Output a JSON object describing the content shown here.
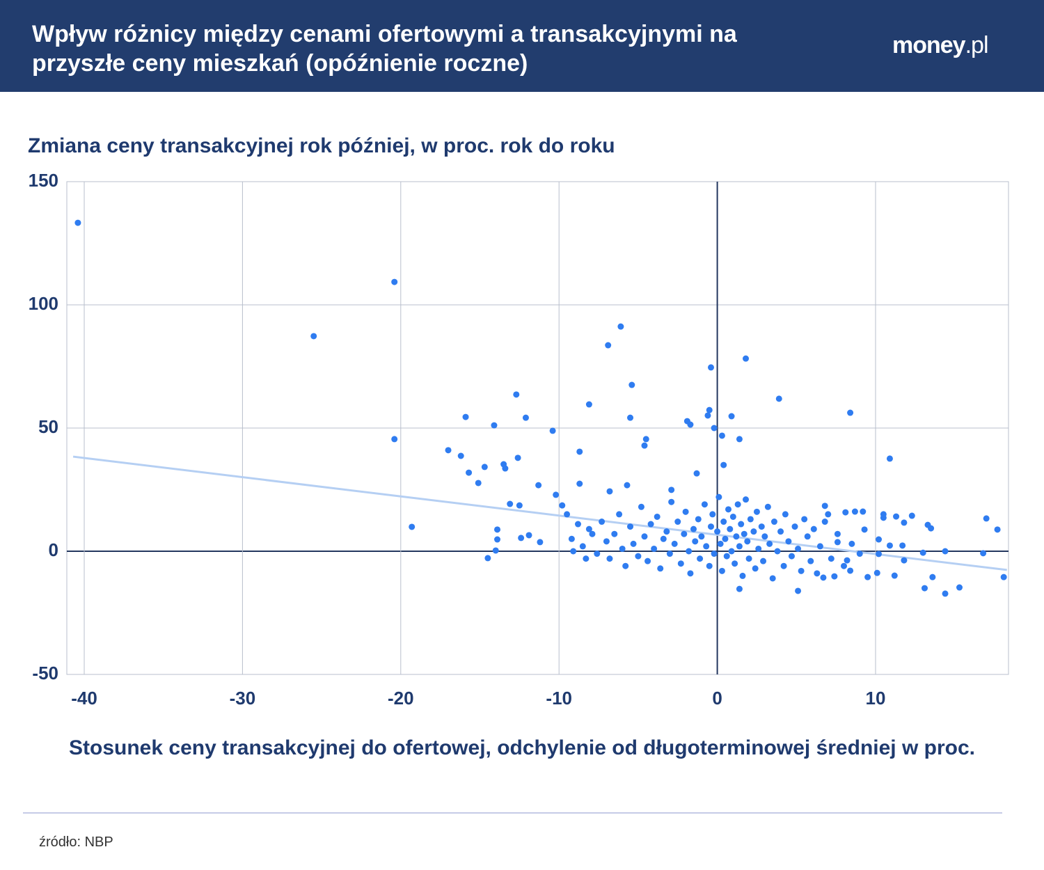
{
  "chart_data": {
    "type": "scatter",
    "title": "Wpływ różnicy między cenami ofertowymi a transakcyjnymi na przyszłe ceny mieszkań (opóźnienie roczne)",
    "logo_main": "money",
    "logo_suffix": ".pl",
    "y_label": "Zmiana ceny transakcyjnej rok później, w proc. rok do roku",
    "x_label": "Stosunek ceny transakcyjnej do ofertowej, odchylenie od długoterminowej średniej w proc.",
    "source": "źródło: NBP",
    "color": "#2f7cf0",
    "grid": true,
    "xlim": [
      -41.1,
      18.4
    ],
    "ylim": [
      -50,
      150
    ],
    "xticks": [
      -40,
      -30,
      -20,
      -10,
      0,
      10
    ],
    "yticks": [
      -50,
      0,
      50,
      100,
      150
    ],
    "trend": {
      "color": "#b5cff3",
      "x": [
        -40.7,
        18.3
      ],
      "y": [
        38.4,
        -7.6
      ]
    },
    "x": [
      -40.4,
      -20.4,
      -25.5,
      -20.4,
      -19.3,
      -6.1,
      -6.9,
      -5.4,
      -5.5,
      -8.1,
      -12.7,
      -12.1,
      -15.9,
      -14.1,
      -10.4,
      -17.0,
      -16.2,
      -8.7,
      -12.6,
      -13.5,
      -13.4,
      -14.7,
      -15.7,
      -15.1,
      -11.3,
      -8.7,
      -10.2,
      -9.8,
      -13.1,
      -12.5,
      -13.9,
      -13.9,
      -12.4,
      -11.9,
      -11.2,
      -14.0,
      -14.5,
      -0.4,
      1.8,
      3.9,
      -0.5,
      -0.6,
      0.9,
      -1.9,
      -1.7,
      -0.2,
      0.3,
      1.4,
      -4.5,
      -4.6,
      8.4,
      10.9,
      -1.3,
      0.4,
      -5.7,
      -6.8,
      -2.9,
      17,
      17.7,
      16.8,
      18.1,
      14.4,
      15.3,
      14.4,
      13.1,
      13.6,
      13,
      13.3,
      13.5,
      11.8,
      11.3,
      11.7,
      11.2,
      10.1,
      10.2,
      10.5,
      10.2,
      10.5,
      12.3,
      11.8,
      10.9,
      9.5,
      9.3,
      9.2,
      8.7,
      8.1,
      8.2,
      8.4,
      7.4,
      6.7,
      7.6,
      7,
      6.8,
      5.1,
      1.4,
      -9.5,
      -8.8,
      -8.3,
      -7.9,
      -9.1,
      -9.2,
      -8.5,
      -8.1,
      -7.6,
      -7.3,
      -7,
      -6.8,
      -6.5,
      -6.2,
      -6,
      -5.8,
      -5.5,
      -5.3,
      -5,
      -4.8,
      -4.6,
      -4.4,
      -4.2,
      -4,
      -3.8,
      -3.6,
      -3.4,
      -3.2,
      -3,
      -2.9,
      -2.7,
      -2.5,
      -2.3,
      -2.1,
      -2,
      -1.8,
      -1.7,
      -1.5,
      -1.4,
      -1.2,
      -1.1,
      -1,
      -0.8,
      -0.7,
      -0.5,
      -0.4,
      -0.3,
      -0.2,
      0,
      0.1,
      0.2,
      0.3,
      0.4,
      0.5,
      0.6,
      0.7,
      0.8,
      0.9,
      1,
      1.1,
      1.2,
      1.3,
      1.4,
      1.5,
      1.6,
      1.7,
      1.8,
      1.9,
      2,
      2.1,
      2.3,
      2.4,
      2.5,
      2.6,
      2.8,
      2.9,
      3,
      3.2,
      3.3,
      3.5,
      3.6,
      3.8,
      4,
      4.2,
      4.3,
      4.5,
      4.7,
      4.9,
      5.1,
      5.3,
      5.5,
      5.7,
      5.9,
      6.1,
      6.3,
      6.5,
      6.8,
      7.2,
      7.6,
      8,
      8.5,
      9
    ],
    "y": [
      133.3,
      109.3,
      87.3,
      45.5,
      9.9,
      91.2,
      83.6,
      67.5,
      54.2,
      59.6,
      63.6,
      54.2,
      54.5,
      51.1,
      48.9,
      41,
      38.7,
      40.4,
      37.9,
      35.3,
      33.6,
      34.2,
      31.9,
      27.7,
      26.8,
      27.4,
      22.9,
      18.6,
      19.2,
      18.6,
      8.8,
      4.8,
      5.4,
      6.5,
      3.7,
      0.3,
      -2.8,
      74.6,
      78.2,
      61.9,
      57.3,
      55.1,
      54.8,
      52.8,
      51.4,
      50,
      46.9,
      45.5,
      45.5,
      42.9,
      56.2,
      37.6,
      31.6,
      35,
      26.8,
      24.3,
      24.9,
      13.3,
      8.8,
      -0.8,
      -10.5,
      0,
      -14.7,
      -17.2,
      -15,
      -10.5,
      -0.6,
      10.7,
      9.3,
      11.6,
      14.1,
      2.3,
      -9.9,
      -8.8,
      -1.1,
      13.6,
      4.8,
      15,
      14.4,
      -3.7,
      2.3,
      -10.5,
      8.8,
      16.1,
      16.1,
      15.8,
      -3.7,
      -7.9,
      -10.2,
      -10.7,
      3.7,
      15,
      18.4,
      -16.1,
      -15.3,
      15,
      11,
      -3,
      7,
      0,
      5,
      2,
      9,
      -1,
      12,
      4,
      -3,
      7,
      15,
      1,
      -6,
      10,
      3,
      -2,
      18,
      6,
      -4,
      11,
      1,
      14,
      -7,
      5,
      8,
      -1,
      20,
      3,
      12,
      -5,
      7,
      16,
      0,
      -9,
      9,
      4,
      13,
      -3,
      6,
      19,
      2,
      -6,
      10,
      15,
      -1,
      8,
      22,
      3,
      -8,
      12,
      5,
      -2,
      17,
      9,
      0,
      14,
      -5,
      6,
      19,
      2,
      11,
      -10,
      7,
      21,
      4,
      -3,
      13,
      8,
      -7,
      16,
      1,
      10,
      -4,
      6,
      18,
      3,
      -11,
      12,
      0,
      8,
      -6,
      15,
      4,
      -2,
      10,
      1,
      -8,
      13,
      6,
      -4,
      9,
      -9,
      2,
      12,
      -3,
      7,
      -6,
      3,
      -1
    ]
  }
}
